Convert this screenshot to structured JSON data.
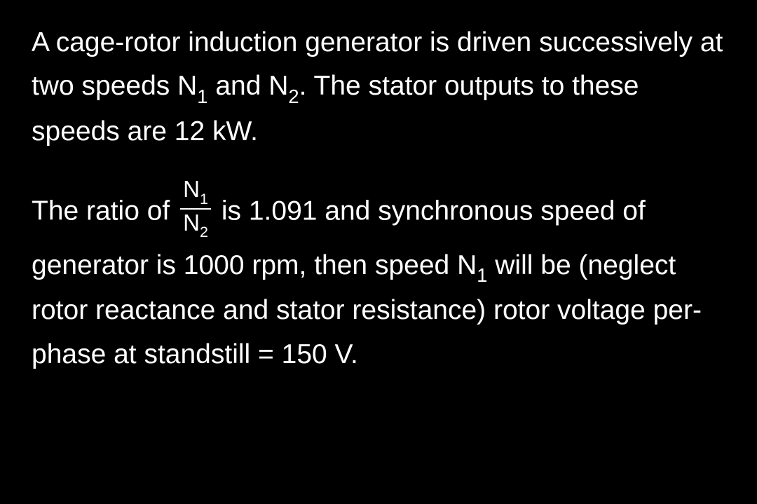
{
  "paragraph1": {
    "line1_part1": "A cage-rotor induction generator is driven",
    "line2_part1": "successively at two speeds N",
    "line2_sub1": "1",
    "line2_part2": " and N",
    "line2_sub2": "2",
    "line2_part3": ". The",
    "line3": "stator outputs to these speeds are 12 kW."
  },
  "paragraph2": {
    "line1_part1": "The ratio of ",
    "frac_num_sym": "N",
    "frac_num_sub": "1",
    "frac_den_sym": "N",
    "frac_den_sub": "2",
    "line1_part2": " is 1.091 and synchronous",
    "line2": "speed of generator is 1000 rpm, then speed",
    "line3_part1": "N",
    "line3_sub1": "1",
    "line3_part2": " will be (neglect rotor reactance and",
    "line4": "stator resistance) rotor voltage per-phase at",
    "line5": "standstill = 150 V."
  },
  "colors": {
    "background": "#000000",
    "text": "#ffffff"
  },
  "typography": {
    "font_family": "Arial, Helvetica, sans-serif",
    "font_size_pt": 30,
    "line_height": 1.6
  }
}
